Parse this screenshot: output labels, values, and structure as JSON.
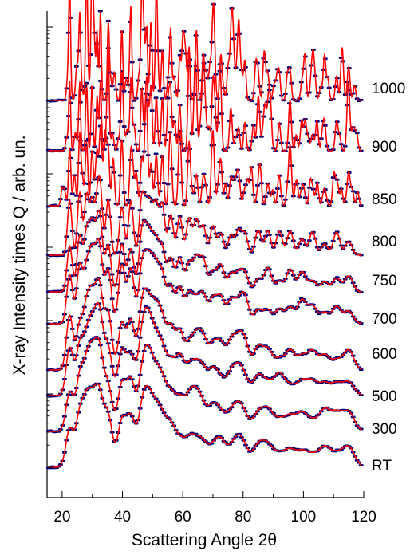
{
  "chart_data": {
    "type": "line",
    "xlabel": "Scattering Angle 2θ",
    "ylabel": "X-ray Intensity times Q / arb. un.",
    "xlim": [
      15,
      120
    ],
    "x_ticks": [
      20,
      40,
      60,
      80,
      100,
      120
    ],
    "y_scale": "log",
    "y_tick_labels": "none",
    "legend": "none",
    "grid": false,
    "marker_color": "#00007a",
    "fit_line_color": "#ff0000",
    "curve_labels": [
      "RT",
      "300",
      "500",
      "600",
      "700",
      "750",
      "800",
      "850",
      "900",
      "1000"
    ],
    "peak_positions": [
      22.5,
      25.8,
      28.1,
      29.9,
      31.6,
      32.7,
      35.3,
      39.8,
      42.8,
      46.4,
      48.0,
      49.5,
      51.2,
      53.2,
      56.0,
      59.0,
      62.1,
      64.5,
      66.8,
      70.0,
      72.6,
      76.0,
      78.5,
      80.6,
      85.0,
      88.2,
      92.0,
      95.6,
      99.5,
      103.0,
      107.0,
      111.0,
      115.0
    ]
  }
}
